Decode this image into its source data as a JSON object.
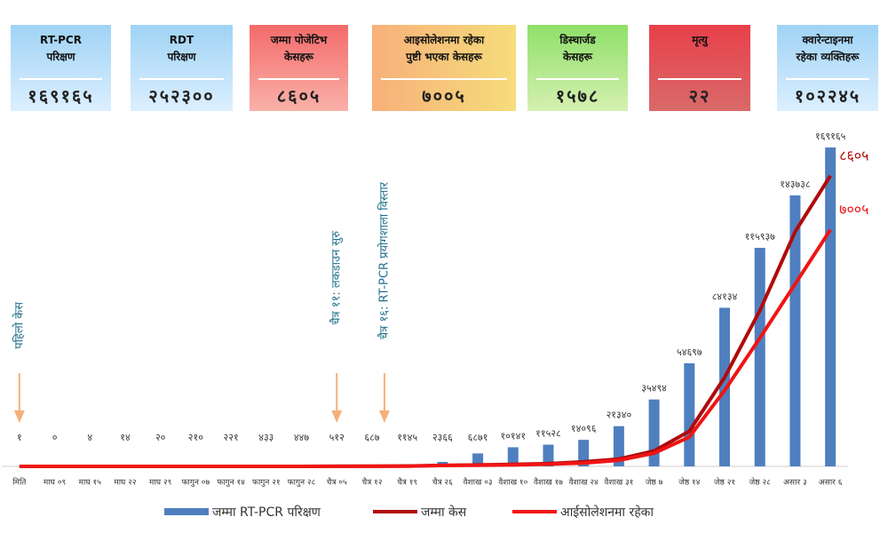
{
  "cards": [
    {
      "title_lines": [
        "RT-PCR",
        "परिक्षण"
      ],
      "value": "१६९१६५"
    },
    {
      "title_lines": [
        "RDT",
        "परिक्षण"
      ],
      "value": "२५२३००"
    },
    {
      "title_lines": [
        "जम्मा पोजेटिभ",
        "केसहरू"
      ],
      "value": "८६०५"
    },
    {
      "title_lines": [
        "आइसोलेशनमा रहेका",
        "पुष्टी भएका केसहरू"
      ],
      "value": "७००५"
    },
    {
      "title_lines": [
        "डिस्चार्जड",
        "केसहरू"
      ],
      "value": "१५७८"
    },
    {
      "title_lines": [
        "मृत्यु"
      ],
      "value": "२२"
    },
    {
      "title_lines": [
        "क्वारेन्टाइनमा",
        "रहेका व्यक्तिहरू"
      ],
      "value": "१०२२४५"
    }
  ],
  "chart_data": {
    "type": "bar",
    "categories": [
      "मिति",
      "माघ ०९",
      "माघ १५",
      "माघ २२",
      "माघ २९",
      "फागुन ०७",
      "फागुन १४",
      "फागुन २१",
      "फागुन २८",
      "चैत्र ०५",
      "चैत्र १२",
      "चैत्र १९",
      "चैत्र २६",
      "वैशाख ०३",
      "वैशाख १०",
      "वैशाख १७",
      "वैशाख २४",
      "वैशाख ३१",
      "जेष्ठ ७",
      "जेष्ठ १४",
      "जेष्ठ २१",
      "जेष्ठ २८",
      "असार ३",
      "असार ६"
    ],
    "ylim": [
      0,
      172000
    ],
    "y2lim": [
      0,
      9600
    ],
    "series": [
      {
        "name": "जम्मा RT-PCR परिक्षण",
        "color": "#4f7fbf",
        "type": "bar",
        "values": [
          1,
          0,
          4,
          14,
          20,
          210,
          221,
          433,
          447,
          512,
          687,
          1145,
          2366,
          6871,
          10141,
          11528,
          14096,
          21340,
          35494,
          54697,
          84134,
          115937,
          143738,
          169165
        ],
        "value_labels": [
          "१",
          "०",
          "४",
          "१४",
          "२०",
          "२१०",
          "२२१",
          "४३३",
          "४४७",
          "५१२",
          "६८७",
          "११४५",
          "२३६६",
          "६८७१",
          "१०१४१",
          "११५२८",
          "१४०९६",
          "२१३४०",
          "३५४९४",
          "५४६९७",
          "८४१३४",
          "११५९३७",
          "१४३७३८",
          "१६९१६५"
        ]
      },
      {
        "name": "जम्मा केस",
        "color": "#b00a0a",
        "type": "line",
        "axis": "y2",
        "end_label": "८६०५",
        "values": [
          1,
          1,
          1,
          1,
          1,
          1,
          1,
          1,
          1,
          2,
          5,
          9,
          31,
          42,
          59,
          82,
          134,
          217,
          457,
          1042,
          2634,
          4614,
          6950,
          8605
        ]
      },
      {
        "name": "आईसोलेशनमा रहेका",
        "color": "#f01414",
        "type": "line",
        "axis": "y2",
        "end_label": "७००५",
        "values": [
          1,
          1,
          1,
          1,
          1,
          1,
          1,
          1,
          1,
          2,
          4,
          8,
          27,
          33,
          43,
          66,
          100,
          180,
          390,
          870,
          2250,
          3800,
          5400,
          7005
        ]
      }
    ],
    "annotations": [
      {
        "text": "पहिलो केस",
        "category": 0
      },
      {
        "text": "चैत्र ११: लकडाउन सुरु",
        "category": 9
      },
      {
        "text": "चैत्र १६: RT-PCR प्रयोगशाला विस्तार",
        "category": 10
      }
    ]
  }
}
